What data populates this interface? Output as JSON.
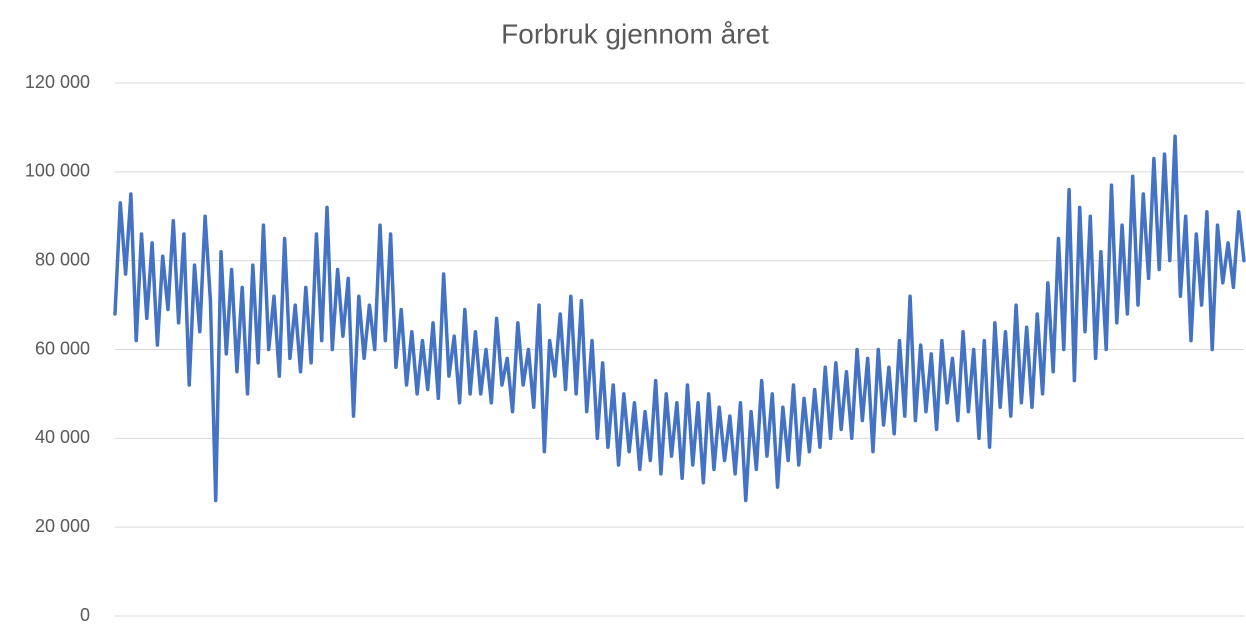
{
  "chart_data": {
    "type": "line",
    "title": "Forbruk gjennom året",
    "color": "#4472c4",
    "grid": true,
    "ylim": [
      0,
      120000
    ],
    "yticks": [
      0,
      {
        "value": 20000,
        "label": "20 000"
      },
      {
        "value": 40000,
        "label": "40 000"
      },
      {
        "value": 60000,
        "label": "60 000"
      },
      {
        "value": 80000,
        "label": "80 000"
      },
      {
        "value": 100000,
        "label": "100 000"
      },
      {
        "value": 120000,
        "label": "120 000"
      }
    ],
    "values": [
      68000,
      93000,
      77000,
      95000,
      62000,
      86000,
      67000,
      84000,
      61000,
      81000,
      69000,
      89000,
      66000,
      86000,
      52000,
      79000,
      64000,
      90000,
      71000,
      26000,
      82000,
      59000,
      78000,
      55000,
      74000,
      50000,
      79000,
      57000,
      88000,
      60000,
      72000,
      54000,
      85000,
      58000,
      70000,
      55000,
      74000,
      57000,
      86000,
      62000,
      92000,
      60000,
      78000,
      63000,
      76000,
      45000,
      72000,
      58000,
      70000,
      60000,
      88000,
      62000,
      86000,
      56000,
      69000,
      52000,
      64000,
      50000,
      62000,
      51000,
      66000,
      49000,
      77000,
      54000,
      63000,
      48000,
      69000,
      50000,
      64000,
      50000,
      60000,
      48000,
      67000,
      52000,
      58000,
      46000,
      66000,
      52000,
      60000,
      47000,
      70000,
      37000,
      62000,
      54000,
      68000,
      51000,
      72000,
      50000,
      71000,
      46000,
      62000,
      40000,
      57000,
      38000,
      52000,
      34000,
      50000,
      37000,
      48000,
      33000,
      46000,
      35000,
      53000,
      32000,
      50000,
      36000,
      48000,
      31000,
      52000,
      34000,
      48000,
      30000,
      50000,
      33000,
      47000,
      35000,
      45000,
      32000,
      48000,
      26000,
      46000,
      33000,
      53000,
      36000,
      50000,
      29000,
      47000,
      35000,
      52000,
      34000,
      49000,
      37000,
      51000,
      38000,
      56000,
      40000,
      57000,
      42000,
      55000,
      40000,
      60000,
      44000,
      58000,
      37000,
      60000,
      43000,
      56000,
      41000,
      62000,
      45000,
      72000,
      44000,
      61000,
      46000,
      59000,
      42000,
      62000,
      48000,
      58000,
      44000,
      64000,
      46000,
      60000,
      40000,
      62000,
      38000,
      66000,
      47000,
      64000,
      45000,
      70000,
      48000,
      65000,
      47000,
      68000,
      50000,
      75000,
      55000,
      85000,
      60000,
      96000,
      53000,
      92000,
      64000,
      90000,
      58000,
      82000,
      60000,
      97000,
      66000,
      88000,
      68000,
      99000,
      70000,
      95000,
      76000,
      103000,
      78000,
      104000,
      80000,
      108000,
      72000,
      90000,
      62000,
      86000,
      70000,
      91000,
      60000,
      88000,
      75000,
      84000,
      74000,
      91000,
      80000
    ]
  }
}
